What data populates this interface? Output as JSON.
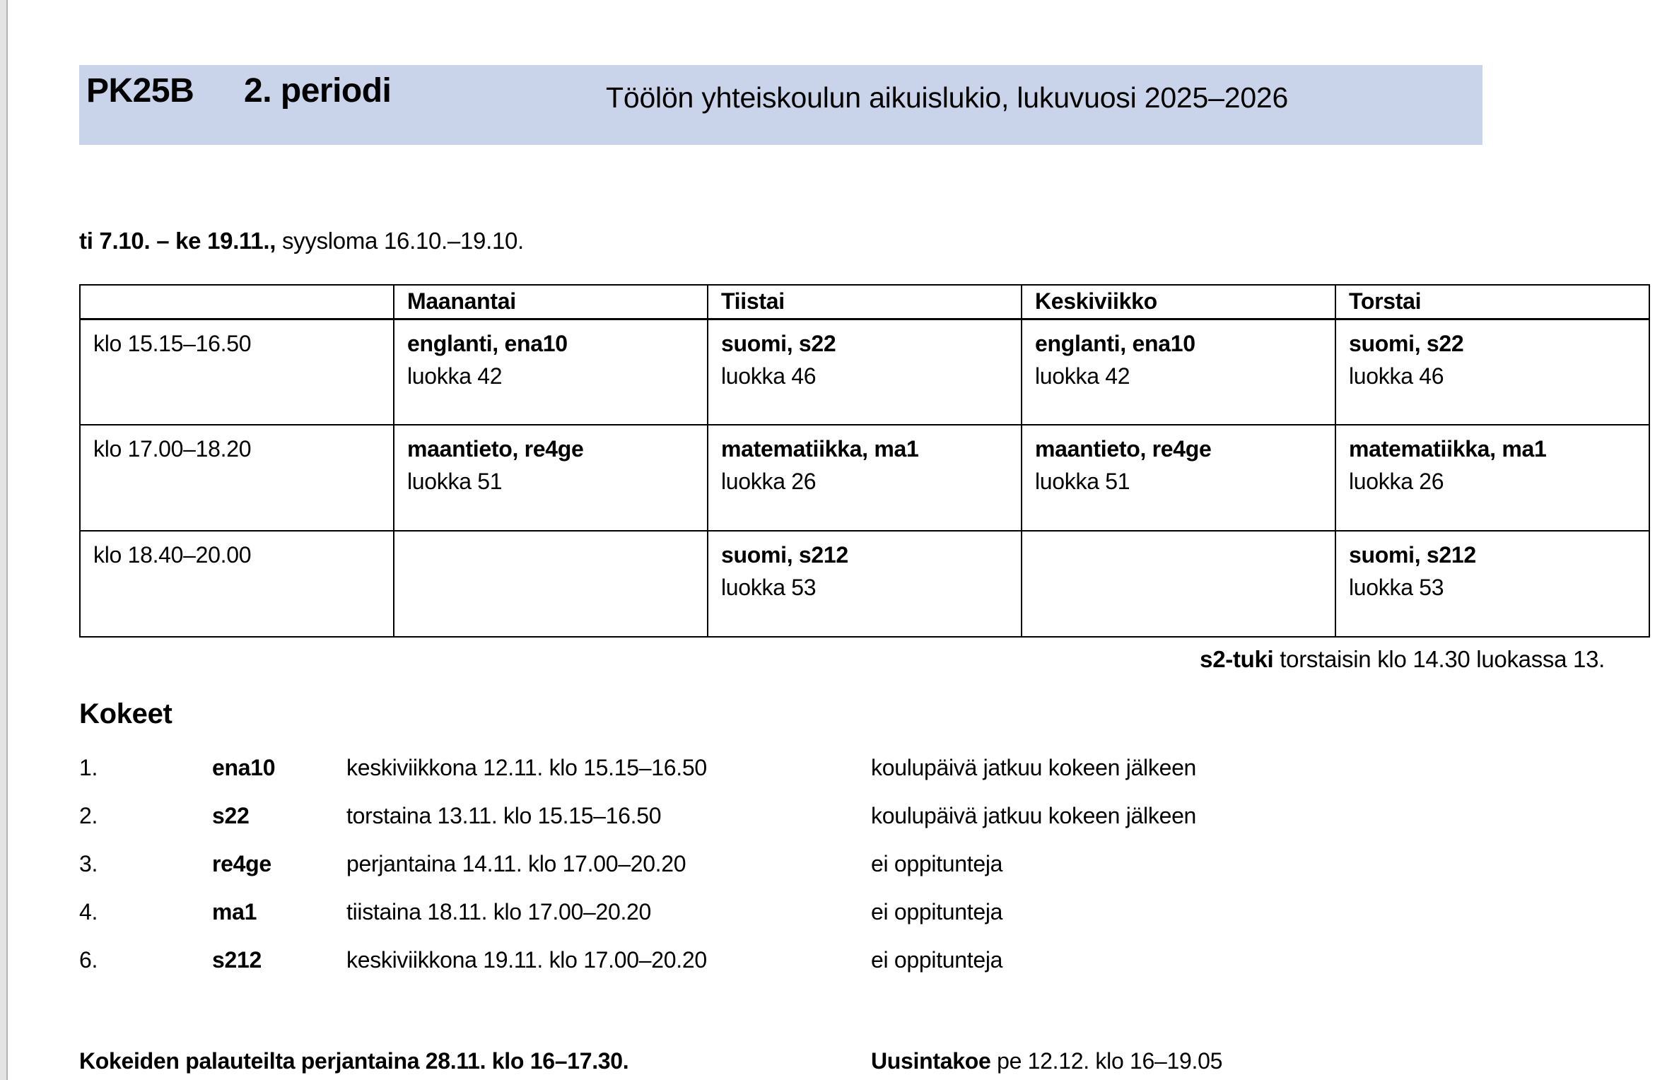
{
  "banner": {
    "code": "PK25B",
    "period": "2. periodi",
    "school": "Töölön yhteiskoulun aikuislukio, lukuvuosi 2025–2026",
    "bg_color": "#c9d3e9"
  },
  "date": {
    "bold": "ti 7.10. – ke 19.11.,",
    "regular": "syysloma 16.10.–19.10."
  },
  "timetable": {
    "columns": [
      "",
      "Maanantai",
      "Tiistai",
      "Keskiviikko",
      "Torstai"
    ],
    "rows": [
      {
        "time": "klo 15.15–16.50",
        "cells": [
          {
            "course": "englanti, ena10",
            "room": "luokka 42"
          },
          {
            "course": "suomi, s22",
            "room": "luokka 46"
          },
          {
            "course": "englanti, ena10",
            "room": "luokka 42"
          },
          {
            "course": "suomi, s22",
            "room": "luokka 46"
          }
        ]
      },
      {
        "time": "klo 17.00–18.20",
        "cells": [
          {
            "course": "maantieto, re4ge",
            "room": "luokka 51"
          },
          {
            "course": "matematiikka, ma1",
            "room": "luokka 26"
          },
          {
            "course": "maantieto, re4ge",
            "room": "luokka 51"
          },
          {
            "course": "matematiikka, ma1",
            "room": "luokka 26"
          }
        ]
      },
      {
        "time": "klo 18.40–20.00",
        "cells": [
          {
            "course": "",
            "room": ""
          },
          {
            "course": "suomi, s212",
            "room": "luokka 53"
          },
          {
            "course": "",
            "room": ""
          },
          {
            "course": "suomi, s212",
            "room": "luokka 53"
          }
        ]
      }
    ]
  },
  "s2note": {
    "bold": "s2-tuki",
    "rest": " torstaisin klo 14.30 luokassa 13."
  },
  "exams": {
    "heading": "Kokeet",
    "items": [
      {
        "num": "1.",
        "code": "ena10",
        "when": "keskiviikkona 12.11. klo 15.15–16.50",
        "note": "koulupäivä jatkuu kokeen jälkeen"
      },
      {
        "num": "2.",
        "code": "s22",
        "when": "torstaina 13.11. klo 15.15–16.50",
        "note": "koulupäivä jatkuu kokeen jälkeen"
      },
      {
        "num": "3.",
        "code": "re4ge",
        "when": "perjantaina 14.11. klo 17.00–20.20",
        "note": "ei oppitunteja"
      },
      {
        "num": "4.",
        "code": "ma1",
        "when": "tiistaina 18.11. klo 17.00–20.20",
        "note": "ei oppitunteja"
      },
      {
        "num": "6.",
        "code": "s212",
        "when": "keskiviikkona 19.11. klo 17.00–20.20",
        "note": "ei oppitunteja"
      }
    ]
  },
  "footer": {
    "left": "Kokeiden palauteilta perjantaina 28.11. klo 16–17.30.",
    "retake_label": "Uusintakoe",
    "retake_rest": " pe 12.12. klo 16–19.05"
  }
}
